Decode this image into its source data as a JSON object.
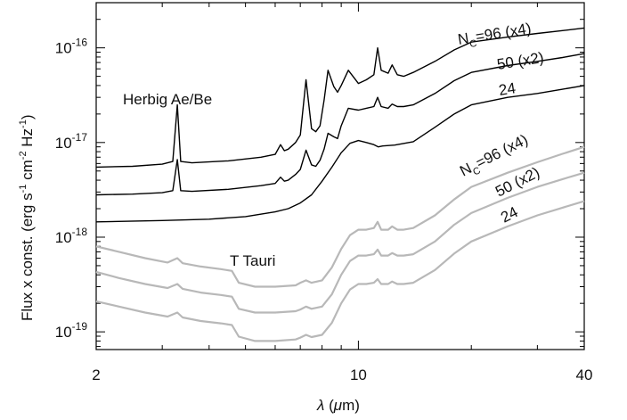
{
  "chart_data": {
    "type": "line",
    "xlabel": "λ (μm)",
    "ylabel": "Flux x const. (erg s-1 cm-2 Hz-1)",
    "xscale": "log",
    "yscale": "log",
    "xlim": [
      2,
      40
    ],
    "ylim": [
      6.5e-20,
      3e-16
    ],
    "x_ticks": [
      2,
      10,
      40
    ],
    "x_tick_labels": [
      "2",
      "10",
      "40"
    ],
    "y_ticks": [
      1e-19,
      1e-18,
      1e-17,
      1e-16
    ],
    "y_tick_labels": [
      {
        "base": "10",
        "exp": "-19"
      },
      {
        "base": "10",
        "exp": "-18"
      },
      {
        "base": "10",
        "exp": "-17"
      },
      {
        "base": "10",
        "exp": "-16"
      }
    ],
    "grid": false,
    "groups": [
      {
        "label": "Herbig Ae/Be",
        "color": "#000000",
        "series_labels": [
          "NC=96 (x4)",
          "50 (x2)",
          "24"
        ],
        "series": [
          {
            "name": "NC=96 (x4)",
            "x": [
              2,
              2.5,
              3.0,
              3.2,
              3.29,
              3.36,
              3.6,
              4.5,
              5.5,
              6.0,
              6.2,
              6.35,
              6.5,
              6.8,
              7.0,
              7.25,
              7.5,
              7.7,
              7.9,
              8.1,
              8.3,
              8.6,
              8.8,
              9.0,
              9.4,
              10.0,
              10.5,
              11.0,
              11.25,
              11.5,
              12.0,
              12.3,
              12.7,
              13.2,
              14.0,
              16,
              18,
              20,
              25,
              30,
              35,
              40
            ],
            "y": [
              5.5e-18,
              5.6e-18,
              5.9e-18,
              6.3e-18,
              2.5e-17,
              6.3e-18,
              6.1e-18,
              6.4e-18,
              7e-18,
              7.5e-18,
              9.5e-18,
              8.2e-18,
              8.5e-18,
              1e-17,
              1.2e-17,
              4.6e-17,
              1.4e-17,
              1.3e-17,
              1.5e-17,
              2.8e-17,
              5.8e-17,
              3.9e-17,
              3.4e-17,
              4e-17,
              5.8e-17,
              4.2e-17,
              4.6e-17,
              5.2e-17,
              1e-16,
              5.8e-17,
              5.4e-17,
              6.6e-17,
              5.2e-17,
              5e-17,
              5.5e-17,
              7.2e-17,
              9.5e-17,
              1.15e-16,
              1.3e-16,
              1.42e-16,
              1.52e-16,
              1.62e-16
            ]
          },
          {
            "name": "50 (x2)",
            "x": [
              2,
              2.5,
              3.0,
              3.2,
              3.29,
              3.36,
              3.6,
              4.5,
              5.5,
              6.0,
              6.2,
              6.35,
              6.5,
              6.8,
              7.0,
              7.25,
              7.5,
              7.7,
              7.9,
              8.1,
              8.3,
              8.6,
              8.8,
              9.0,
              9.4,
              10.0,
              10.5,
              11.0,
              11.25,
              11.5,
              12.0,
              12.3,
              12.7,
              13.2,
              14.0,
              16,
              18,
              20,
              25,
              30,
              35,
              40
            ],
            "y": [
              2.8e-18,
              2.85e-18,
              2.95e-18,
              3.1e-18,
              6.6e-18,
              3.1e-18,
              3.05e-18,
              3.2e-18,
              3.5e-18,
              3.7e-18,
              4.3e-18,
              3.9e-18,
              4e-18,
              4.6e-18,
              5.2e-18,
              8.3e-18,
              5.8e-18,
              5.6e-18,
              6.5e-18,
              8.5e-18,
              1.25e-17,
              1.15e-17,
              1.1e-17,
              1.5e-17,
              2.3e-17,
              2.2e-17,
              2.3e-17,
              2.4e-17,
              3e-17,
              2.4e-17,
              2.3e-17,
              2.55e-17,
              2.4e-17,
              2.4e-17,
              2.5e-17,
              3.3e-17,
              4.5e-17,
              5.5e-17,
              6.5e-17,
              7.2e-17,
              7.9e-17,
              8.7e-17
            ]
          },
          {
            "name": "24",
            "x": [
              2,
              3,
              4,
              5,
              6,
              6.5,
              7,
              7.5,
              8,
              8.5,
              9,
              9.5,
              10,
              10.5,
              11,
              11.3,
              11.6,
              12.5,
              14,
              16,
              18,
              20,
              25,
              30,
              35,
              40
            ],
            "y": [
              1.45e-18,
              1.5e-18,
              1.55e-18,
              1.65e-18,
              1.85e-18,
              2e-18,
              2.3e-18,
              2.8e-18,
              3.9e-18,
              5.5e-18,
              7.8e-18,
              9.8e-18,
              1.05e-17,
              1e-17,
              9.5e-18,
              9e-18,
              9.2e-18,
              9.4e-18,
              1.02e-17,
              1.45e-17,
              2e-17,
              2.5e-17,
              3e-17,
              3.3e-17,
              3.65e-17,
              4e-17
            ]
          }
        ]
      },
      {
        "label": "T Tauri",
        "color": "#b8b8b8",
        "series_labels": [
          "NC=96 (x4)",
          "50 (x2)",
          "24"
        ],
        "series": [
          {
            "name": "NC=96 (x4)",
            "x": [
              2,
              2.3,
              2.7,
              3.1,
              3.29,
              3.4,
              3.8,
              4.3,
              4.6,
              4.8,
              5.3,
              6.0,
              6.8,
              7.0,
              7.25,
              7.5,
              8.0,
              8.5,
              9.0,
              9.5,
              10.0,
              10.5,
              11.0,
              11.25,
              11.5,
              12.0,
              12.3,
              12.7,
              13.2,
              14.0,
              16,
              18,
              20,
              25,
              30,
              35,
              40
            ],
            "y": [
              8e-19,
              7e-19,
              6e-19,
              5.4e-19,
              6e-19,
              5.3e-19,
              4.9e-19,
              4.6e-19,
              4.4e-19,
              3.3e-19,
              3e-19,
              3e-19,
              3.1e-19,
              3.3e-19,
              3.5e-19,
              3.3e-19,
              3.5e-19,
              4.8e-19,
              7.5e-19,
              1.05e-18,
              1.2e-18,
              1.2e-18,
              1.25e-18,
              1.45e-18,
              1.2e-18,
              1.2e-18,
              1.3e-18,
              1.2e-18,
              1.2e-18,
              1.25e-18,
              1.7e-18,
              2.5e-18,
              3.4e-18,
              4.8e-18,
              6.2e-18,
              7.6e-18,
              9e-18
            ]
          },
          {
            "name": "50 (x2)",
            "x": [
              2,
              2.3,
              2.7,
              3.1,
              3.29,
              3.4,
              3.8,
              4.3,
              4.6,
              4.8,
              5.3,
              6.0,
              6.8,
              7.0,
              7.25,
              7.5,
              8.0,
              8.5,
              9.0,
              9.5,
              10.0,
              10.5,
              11.0,
              11.25,
              11.5,
              12.0,
              12.3,
              12.7,
              13.2,
              14.0,
              16,
              18,
              20,
              25,
              30,
              35,
              40
            ],
            "y": [
              4.3e-19,
              3.7e-19,
              3.2e-19,
              2.9e-19,
              3.2e-19,
              2.85e-19,
              2.6e-19,
              2.45e-19,
              2.35e-19,
              1.75e-19,
              1.6e-19,
              1.6e-19,
              1.65e-19,
              1.72e-19,
              1.85e-19,
              1.75e-19,
              1.85e-19,
              2.5e-19,
              4e-19,
              5.6e-19,
              6.4e-19,
              6.4e-19,
              6.6e-19,
              7.4e-19,
              6.4e-19,
              6.4e-19,
              6.8e-19,
              6.4e-19,
              6.4e-19,
              6.6e-19,
              9e-19,
              1.35e-18,
              1.8e-18,
              2.6e-18,
              3.4e-18,
              4.1e-18,
              4.8e-18
            ]
          },
          {
            "name": "24",
            "x": [
              2,
              2.3,
              2.7,
              3.1,
              3.29,
              3.4,
              3.8,
              4.3,
              4.6,
              4.8,
              5.3,
              6.0,
              6.8,
              7.0,
              7.25,
              7.5,
              8.0,
              8.5,
              9.0,
              9.5,
              10.0,
              10.5,
              11.0,
              11.25,
              11.5,
              12.0,
              12.3,
              12.7,
              13.2,
              14.0,
              16,
              18,
              20,
              25,
              30,
              35,
              40
            ],
            "y": [
              2.1e-19,
              1.85e-19,
              1.6e-19,
              1.45e-19,
              1.6e-19,
              1.42e-19,
              1.3e-19,
              1.23e-19,
              1.18e-19,
              8.9e-20,
              8e-20,
              8e-20,
              8.3e-20,
              8.7e-20,
              9.3e-20,
              8.8e-20,
              9.3e-20,
              1.25e-19,
              2e-19,
              2.8e-19,
              3.2e-19,
              3.2e-19,
              3.3e-19,
              3.6e-19,
              3.2e-19,
              3.2e-19,
              3.4e-19,
              3.2e-19,
              3.2e-19,
              3.3e-19,
              4.5e-19,
              6.7e-19,
              9e-19,
              1.3e-18,
              1.7e-18,
              2.05e-18,
              2.4e-18
            ]
          }
        ]
      }
    ]
  }
}
